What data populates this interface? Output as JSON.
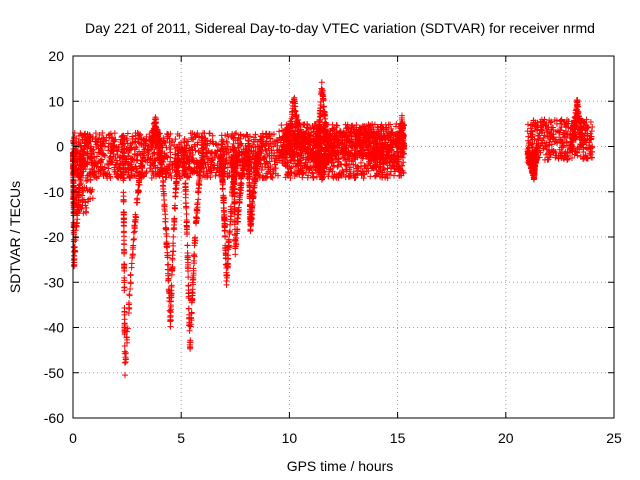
{
  "chart_data": {
    "type": "scatter",
    "title": "Day 221 of 2011, Sidereal Day-to-day VTEC variation (SDTVAR) for receiver nrmd",
    "xlabel": "GPS time / hours",
    "ylabel": "SDTVAR / TECUs",
    "xlim": [
      0,
      25
    ],
    "ylim": [
      -60,
      20
    ],
    "xticks": [
      "0",
      "5",
      "10",
      "15",
      "20",
      "25"
    ],
    "yticks": [
      "20",
      "10",
      "0",
      "-10",
      "-20",
      "-30",
      "-40",
      "-50",
      "-60"
    ],
    "grid": true,
    "marker": "+",
    "color": "#ff0000",
    "series": [
      {
        "name": "SDTVAR",
        "bands": [
          {
            "x_start": 0.0,
            "x_end": 15.3,
            "y_min": -7,
            "y_max": 3
          },
          {
            "x_start": 0.0,
            "x_end": 1.0,
            "y_min": -15,
            "y_max": 3
          },
          {
            "x_start": 9.5,
            "x_end": 15.3,
            "y_min": -3,
            "y_max": 5
          },
          {
            "x_start": 21.0,
            "x_end": 24.0,
            "y_min": -3,
            "y_max": 6
          }
        ],
        "dips": [
          {
            "x_start": 0.0,
            "x_end": 0.5,
            "x_min": 0.05,
            "y_min": -26
          },
          {
            "x_start": 2.3,
            "x_end": 3.3,
            "x_min": 2.4,
            "y_min": -50
          },
          {
            "x_start": 4.0,
            "x_end": 4.9,
            "x_min": 4.5,
            "y_min": -39
          },
          {
            "x_start": 5.1,
            "x_end": 6.0,
            "x_min": 5.4,
            "y_min": -45
          },
          {
            "x_start": 6.8,
            "x_end": 7.6,
            "x_min": 7.1,
            "y_min": -30
          },
          {
            "x_start": 7.4,
            "x_end": 8.0,
            "x_min": 7.5,
            "y_min": -23
          },
          {
            "x_start": 8.1,
            "x_end": 8.6,
            "x_min": 8.2,
            "y_min": -18
          },
          {
            "x_start": 11.3,
            "x_end": 11.7,
            "x_min": 11.5,
            "y_min": -6
          },
          {
            "x_start": 21.0,
            "x_end": 21.4,
            "x_min": 21.3,
            "y_min": -6
          }
        ],
        "peaks": [
          {
            "x_start": 3.6,
            "x_end": 4.0,
            "x_max": 3.8,
            "y_max": 7
          },
          {
            "x_start": 9.9,
            "x_end": 10.6,
            "x_max": 10.2,
            "y_max": 12
          },
          {
            "x_start": 11.3,
            "x_end": 11.8,
            "x_max": 11.5,
            "y_max": 15
          },
          {
            "x_start": 15.0,
            "x_end": 15.3,
            "x_max": 15.2,
            "y_max": 7
          },
          {
            "x_start": 23.0,
            "x_end": 23.6,
            "x_max": 23.3,
            "y_max": 11
          }
        ]
      }
    ]
  }
}
